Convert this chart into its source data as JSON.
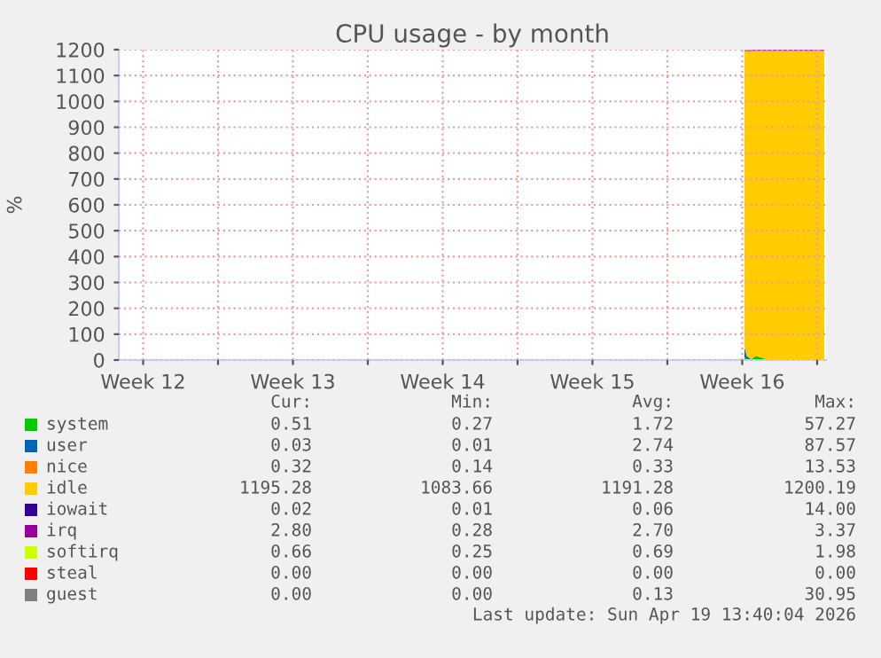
{
  "chart_data": {
    "type": "area",
    "stacked": true,
    "title": "CPU usage - by month",
    "ylabel": "%",
    "x": [
      "2026-04-16T14:30",
      "2026-04-16T17:00",
      "2026-04-16T22:00",
      "2026-04-17T03:00",
      "2026-04-17T18:00",
      "2026-04-18T12:00",
      "2026-04-19T06:00",
      "2026-04-19T20:00",
      "2026-04-20T08:00"
    ],
    "xlim": [
      "2026-03-18T08:40",
      "2026-04-20T10:00"
    ],
    "xticks": [
      {
        "value": "2026-03-19T12:00",
        "label": "Week 12"
      },
      {
        "value": "2026-03-23",
        "label": null
      },
      {
        "value": "2026-03-26T12:00",
        "label": "Week 13"
      },
      {
        "value": "2026-03-30",
        "label": null
      },
      {
        "value": "2026-04-02T12:00",
        "label": "Week 14"
      },
      {
        "value": "2026-04-06",
        "label": null
      },
      {
        "value": "2026-04-09T12:00",
        "label": "Week 15"
      },
      {
        "value": "2026-04-13",
        "label": null
      },
      {
        "value": "2026-04-16T12:00",
        "label": "Week 16"
      },
      {
        "value": "2026-04-20",
        "label": null
      }
    ],
    "ylim": [
      0,
      1200
    ],
    "yticks": [
      0,
      100,
      200,
      300,
      400,
      500,
      600,
      700,
      800,
      900,
      1000,
      1100,
      1200
    ],
    "grid": true,
    "legend": "bottom",
    "series": [
      {
        "name": "system",
        "color": "#00cc00",
        "values": [
          10,
          5,
          2,
          15,
          1,
          1,
          1,
          1,
          1
        ]
      },
      {
        "name": "user",
        "color": "#0066b3",
        "values": [
          40,
          10,
          1,
          1,
          0,
          0,
          0,
          0,
          0
        ]
      },
      {
        "name": "nice",
        "color": "#ff8000",
        "values": [
          null,
          null,
          null,
          null,
          null,
          null,
          null,
          null,
          null
        ]
      },
      {
        "name": "idle",
        "color": "#ffcc00",
        "values": [
          1145,
          1180,
          1192,
          1180,
          1195,
          1195,
          1195,
          1195,
          1195
        ]
      },
      {
        "name": "iowait",
        "color": "#330099",
        "values": [
          null,
          null,
          null,
          null,
          null,
          null,
          null,
          null,
          null
        ]
      },
      {
        "name": "irq",
        "color": "#990099",
        "values": [
          3,
          3,
          3,
          3,
          3,
          3,
          3,
          3,
          3
        ]
      },
      {
        "name": "softirq",
        "color": "#ccff00",
        "values": [
          null,
          null,
          null,
          null,
          null,
          null,
          null,
          null,
          null
        ]
      },
      {
        "name": "steal",
        "color": "#ff0000",
        "values": [
          null,
          null,
          null,
          null,
          null,
          null,
          null,
          null,
          null
        ]
      },
      {
        "name": "guest",
        "color": "#808080",
        "values": [
          null,
          null,
          null,
          null,
          null,
          null,
          null,
          null,
          null
        ]
      }
    ],
    "annotations": [
      "Cur:",
      "Min:",
      "Avg:",
      "Max:",
      "0.51",
      "0.27",
      "1.72",
      "57.27",
      "0.03",
      "0.01",
      "2.74",
      "87.57",
      "0.32",
      "0.14",
      "0.33",
      "13.53",
      "1195.28",
      "1083.66",
      "1191.28",
      "1200.19",
      "0.02",
      "0.01",
      "0.06",
      "14.00",
      "2.80",
      "0.28",
      "2.70",
      "3.37",
      "0.66",
      "0.25",
      "0.69",
      "1.98",
      "0.00",
      "0.00",
      "0.00",
      "0.00",
      "0.00",
      "0.00",
      "0.13",
      "30.95",
      "Last update: Sun Apr 19 13:40:04 2026"
    ]
  }
}
